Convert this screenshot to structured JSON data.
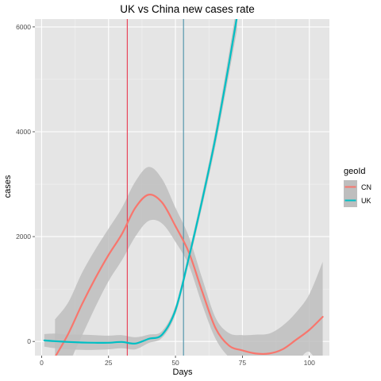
{
  "chart_data": {
    "type": "line",
    "title": "UK vs China new cases rate",
    "xlabel": "Days",
    "ylabel": "cases",
    "xlim": [
      -2.5,
      107.5
    ],
    "ylim": [
      -270,
      6150
    ],
    "x_ticks": [
      0,
      25,
      50,
      75,
      100
    ],
    "y_ticks": [
      0,
      2000,
      4000,
      6000
    ],
    "grid": true,
    "colors": {
      "panel_background": "#E5E5E5",
      "ribbon": "#BEBEBE",
      "CN": "#F8766D",
      "UK": "#00BFC4",
      "vline_CN": "#E8384F",
      "vline_UK": "#4A90A8"
    },
    "legend": {
      "title": "geoId",
      "placement": "right",
      "entries": [
        "CN",
        "UK"
      ]
    },
    "vlines": [
      {
        "series": "CN",
        "x": 32
      },
      {
        "series": "UK",
        "x": 53
      }
    ],
    "series": [
      {
        "name": "CN",
        "x": [
          5,
          10,
          15,
          20,
          25,
          30,
          35,
          40,
          45,
          50,
          55,
          60,
          65,
          70,
          75,
          80,
          85,
          90,
          95,
          100,
          105
        ],
        "y": [
          -300,
          150,
          700,
          1200,
          1650,
          2050,
          2550,
          2800,
          2650,
          2200,
          1700,
          950,
          250,
          -80,
          -170,
          -230,
          -230,
          -150,
          30,
          220,
          470
        ],
        "lower": [
          -1000,
          -450,
          100,
          650,
          1150,
          1550,
          2000,
          2300,
          2250,
          1900,
          1450,
          700,
          50,
          -300,
          -450,
          -560,
          -600,
          -560,
          -420,
          -200,
          -650
        ],
        "upper": [
          420,
          750,
          1300,
          1750,
          2150,
          2550,
          3050,
          3330,
          3100,
          2550,
          2000,
          1200,
          450,
          160,
          120,
          130,
          150,
          300,
          550,
          900,
          1520
        ]
      },
      {
        "name": "UK",
        "x": [
          1,
          5,
          10,
          15,
          20,
          25,
          30,
          35,
          40,
          45,
          50,
          55,
          60,
          65,
          70,
          73
        ],
        "y": [
          20,
          5,
          -10,
          -20,
          -25,
          -25,
          -10,
          -40,
          50,
          130,
          600,
          1600,
          2700,
          3900,
          5300,
          6200
        ],
        "lower": [
          -100,
          -130,
          -150,
          -160,
          -160,
          -150,
          -130,
          -150,
          -30,
          70,
          520,
          1500,
          2580,
          3750,
          5100,
          5950
        ],
        "upper": [
          140,
          150,
          130,
          130,
          120,
          110,
          120,
          80,
          130,
          200,
          680,
          1700,
          2820,
          4050,
          5500,
          6450
        ]
      }
    ]
  }
}
